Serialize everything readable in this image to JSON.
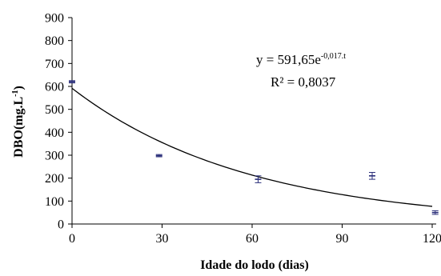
{
  "chart_data": {
    "type": "scatter",
    "title": "",
    "xlabel": "Idade do lodo (dias)",
    "ylabel": "DBO(mg.L",
    "ylabel_sup": "-1",
    "ylabel_tail": ")",
    "xlim": [
      0,
      120
    ],
    "ylim": [
      0,
      900
    ],
    "x_ticks": [
      0,
      30,
      60,
      90,
      120
    ],
    "y_ticks": [
      0,
      100,
      200,
      300,
      400,
      500,
      600,
      700,
      800,
      900
    ],
    "grid": false,
    "legend": "none",
    "series": [
      {
        "x": [
          0,
          29,
          62,
          100,
          121
        ],
        "y": [
          620,
          298,
          195,
          210,
          50
        ],
        "error": [
          5,
          5,
          15,
          15,
          8
        ],
        "marker_color": "#2b2f7a"
      }
    ],
    "trendline": {
      "type": "exponential",
      "a": 591.65,
      "b": -0.017,
      "x_range": [
        0,
        120
      ],
      "equation_text": "y = 591,65e",
      "equation_exponent": "-0,017.t",
      "r2_text": "R² = 0,8037"
    }
  }
}
